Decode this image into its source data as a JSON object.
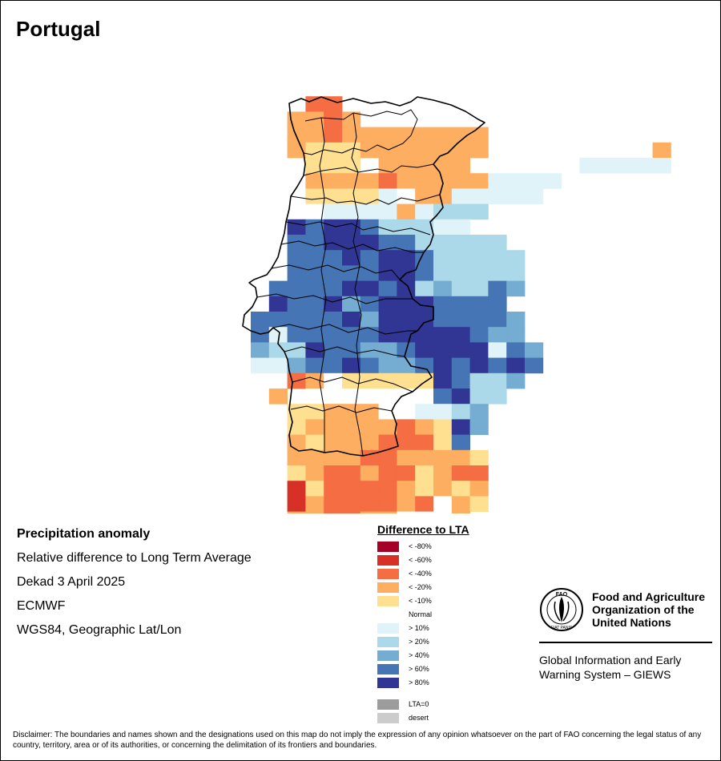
{
  "title": "Portugal",
  "info": {
    "heading": "Precipitation anomaly",
    "line1": "Relative difference to Long Term Average",
    "line2": "Dekad 3 April 2025",
    "line3": "ECMWF",
    "line4": "WGS84, Geographic Lat/Lon"
  },
  "legend": {
    "title": "Difference to LTA",
    "items": [
      {
        "label": "< -80%",
        "color": "#a50026"
      },
      {
        "label": "< -60%",
        "color": "#d73027"
      },
      {
        "label": "< -40%",
        "color": "#f46d43"
      },
      {
        "label": "< -20%",
        "color": "#fdae61"
      },
      {
        "label": "< -10%",
        "color": "#fee090"
      },
      {
        "label": "Normal",
        "color": "#ffffff"
      },
      {
        "label": "> 10%",
        "color": "#e0f3f8"
      },
      {
        "label": "> 20%",
        "color": "#abd9e9"
      },
      {
        "label": "> 40%",
        "color": "#74add1"
      },
      {
        "label": "> 60%",
        "color": "#4575b4"
      },
      {
        "label": "> 80%",
        "color": "#313695"
      }
    ],
    "extra": [
      {
        "label": "LTA=0",
        "color": "#9c9c9c"
      },
      {
        "label": "desert",
        "color": "#cccccc"
      }
    ]
  },
  "logo": {
    "name_line1": "Food and Agriculture",
    "name_line2": "Organization of the",
    "name_line3": "United Nations",
    "emblem_text": "FAO",
    "emblem_motto": "FIAT PANIS",
    "giews_line1": "Global Information and Early",
    "giews_line2": "Warning System – GIEWS"
  },
  "disclaimer": "Disclaimer: The boundaries and names shown and the designations used on this map do not imply the expression of any opinion whatsoever on the part of FAO concerning the legal status of any country, territory, area or of its authorities, or concerning the delimitation of its frontiers and boundaries.",
  "map": {
    "classes": [
      "#a50026",
      "#d73027",
      "#f46d43",
      "#fdae61",
      "#fee090",
      "#ffffff",
      "#e0f3f8",
      "#abd9e9",
      "#74add1",
      "#4575b4",
      "#313695"
    ],
    "grid_rows": [
      "............................",
      "...22.......................",
      "..3323......................",
      "..33233333333...............",
      "..34443333333.........3.....",
      "...444.33333......66666.....",
      "...33332333336666...........",
      "...4444653366666...........",
      "..55666636777...............",
      "..A9AA977766................",
      "..99AAA9977777..............",
      "..999A9AA977777.............",
      "..99999AA977777..............",
      ".9999AA9A787798..............",
      ".A99A89AAA9999...............",
      "99999A8AAA99998..............",
      "9699999AAAAA988..............",
      "877A99889AAAA698............",
      "66899A9889A9A9A9.............",
      "..23544444A9778..............",
      ".3.55555559A77...............",
      "..44333556678................",
      "..433333234A8................",
      "..3433322249.................",
      "..33332233334................",
      "..43223224322................",
      "..14222234343................",
      "..13222232534................",
      "..33223355.3.................",
      "............................."
    ],
    "outline": "Portugal border"
  }
}
